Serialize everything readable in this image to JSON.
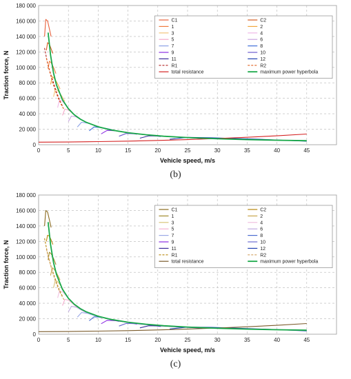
{
  "panel_b_caption": "(b)",
  "panel_c_caption": "(c)",
  "chart_data": [
    {
      "type": "line",
      "caption": "(b)",
      "xlabel": "Vehicle speed, m/s",
      "ylabel": "Traction force, N",
      "xlim": [
        0,
        50
      ],
      "ylim": [
        0,
        180000
      ],
      "xticks": [
        0,
        5,
        10,
        15,
        20,
        25,
        30,
        35,
        40,
        45
      ],
      "yticks": [
        0,
        20000,
        40000,
        60000,
        80000,
        100000,
        120000,
        140000,
        160000,
        180000
      ],
      "ytick_labels": [
        "0",
        "20 000",
        "40 000",
        "60 000",
        "80 000",
        "100 000",
        "120 000",
        "140 000",
        "160 000",
        "180 000"
      ],
      "grid": true,
      "grid_style": "dashed",
      "legend_position": "top-right",
      "legend": [
        "C1",
        "C2",
        "1",
        "2",
        "3",
        "4",
        "5",
        "6",
        "7",
        "8",
        "9",
        "10",
        "11",
        "12",
        "R1",
        "R2",
        "total resistance",
        "maximum power hyperbola"
      ],
      "series": [
        {
          "name": "C1",
          "color": "#e8603a",
          "dash": false,
          "x": [
            1.0,
            1.2,
            1.5,
            1.8,
            2.1
          ],
          "y": [
            140000,
            162000,
            160000,
            150000,
            140000
          ]
        },
        {
          "name": "C2",
          "color": "#d65a1e",
          "dash": false,
          "x": [
            1.3,
            1.5,
            1.8,
            2.1,
            2.4
          ],
          "y": [
            122000,
            132000,
            130000,
            124000,
            118000
          ]
        },
        {
          "name": "1",
          "color": "#f07a3c",
          "dash": false,
          "x": [
            1.6,
            1.8,
            2.1,
            2.5,
            2.9
          ],
          "y": [
            98000,
            108000,
            106000,
            100000,
            92000
          ]
        },
        {
          "name": "2",
          "color": "#f2a63c",
          "dash": false,
          "x": [
            2.0,
            2.3,
            2.6,
            3.1,
            3.6
          ],
          "y": [
            78000,
            88000,
            86000,
            80000,
            72000
          ]
        },
        {
          "name": "3",
          "color": "#f4c47a",
          "dash": false,
          "x": [
            2.5,
            2.8,
            3.2,
            3.8,
            4.4
          ],
          "y": [
            62000,
            72000,
            70000,
            64000,
            56000
          ]
        },
        {
          "name": "4",
          "color": "#f0b8e8",
          "dash": false,
          "x": [
            3.2,
            3.5,
            4.0,
            4.7,
            5.4
          ],
          "y": [
            48000,
            58000,
            56000,
            50000,
            44000
          ]
        },
        {
          "name": "5",
          "color": "#f5a8c8",
          "dash": false,
          "x": [
            4.0,
            4.4,
            5.0,
            5.8,
            6.6
          ],
          "y": [
            38000,
            46000,
            45000,
            40000,
            35000
          ]
        },
        {
          "name": "6",
          "color": "#c9a4e0",
          "dash": false,
          "x": [
            5.0,
            5.5,
            6.3,
            7.2,
            8.2
          ],
          "y": [
            30000,
            37000,
            36000,
            32000,
            28000
          ]
        },
        {
          "name": "7",
          "color": "#8aa0e6",
          "dash": false,
          "x": [
            6.5,
            7.2,
            8.2,
            9.4,
            10.6
          ],
          "y": [
            23000,
            29000,
            28000,
            25000,
            22000
          ]
        },
        {
          "name": "8",
          "color": "#3f6fd8",
          "dash": false,
          "x": [
            8.5,
            9.3,
            10.6,
            12.0,
            13.5
          ],
          "y": [
            18000,
            23000,
            22000,
            20000,
            17000
          ]
        },
        {
          "name": "9",
          "color": "#8a2be2",
          "dash": false,
          "x": [
            10.5,
            11.5,
            13.0,
            14.8,
            16.5
          ],
          "y": [
            14000,
            18500,
            18000,
            16000,
            13500
          ]
        },
        {
          "name": "10",
          "color": "#6a5acd",
          "dash": false,
          "x": [
            13.5,
            14.7,
            16.5,
            18.5,
            20.5
          ],
          "y": [
            11000,
            14500,
            14000,
            12500,
            10500
          ]
        },
        {
          "name": "11",
          "color": "#3a2a9a",
          "dash": false,
          "x": [
            17.0,
            18.5,
            21.0,
            24.0,
            27.5
          ],
          "y": [
            8500,
            11500,
            11000,
            9500,
            8000
          ]
        },
        {
          "name": "12",
          "color": "#1f3fb0",
          "dash": false,
          "x": [
            22.0,
            25.0,
            29.0,
            33.0,
            37.0,
            41.0,
            45.0
          ],
          "y": [
            7000,
            9500,
            9000,
            8000,
            7000,
            5800,
            4500
          ]
        },
        {
          "name": "R1",
          "color": "#b22222",
          "dash": true,
          "x": [
            1.0,
            1.5,
            2.0,
            2.5,
            3.0,
            3.5,
            4.0
          ],
          "y": [
            125000,
            105000,
            92000,
            80000,
            68000,
            58000,
            50000
          ]
        },
        {
          "name": "R2",
          "color": "#e06020",
          "dash": true,
          "x": [
            1.3,
            1.8,
            2.3,
            2.8,
            3.3,
            3.8,
            4.3
          ],
          "y": [
            112000,
            96000,
            82000,
            70000,
            60000,
            52000,
            45000
          ]
        },
        {
          "name": "total resistance",
          "color": "#d42020",
          "dash": false,
          "x": [
            0,
            5,
            10,
            15,
            20,
            25,
            30,
            35,
            40,
            45
          ],
          "y": [
            3300,
            3500,
            4000,
            4600,
            5500,
            6600,
            8000,
            9600,
            11500,
            13800
          ]
        },
        {
          "name": "maximum power hyperbola",
          "color": "#18a848",
          "dash": false,
          "x": [
            1.6,
            2,
            2.5,
            3,
            4,
            5,
            6,
            7,
            8,
            10,
            12,
            15,
            18,
            21,
            25,
            30,
            35,
            40,
            45
          ],
          "y": [
            145000,
            116000,
            92800,
            77300,
            58000,
            46400,
            38700,
            33100,
            29000,
            23200,
            19300,
            15500,
            12900,
            11000,
            9300,
            7700,
            6600,
            5800,
            5200
          ]
        }
      ]
    },
    {
      "type": "line",
      "caption": "(c)",
      "xlabel": "Vehicle speed, m/s",
      "ylabel": "Traction force, N",
      "xlim": [
        0,
        50
      ],
      "ylim": [
        0,
        180000
      ],
      "xticks": [
        0,
        5,
        10,
        15,
        20,
        25,
        30,
        35,
        40,
        45
      ],
      "yticks": [
        0,
        20000,
        40000,
        60000,
        80000,
        100000,
        120000,
        140000,
        160000,
        180000
      ],
      "ytick_labels": [
        "0",
        "20 000",
        "40 000",
        "60 000",
        "80 000",
        "100 000",
        "120 000",
        "140 000",
        "160 000",
        "180 000"
      ],
      "grid": true,
      "grid_style": "dashed",
      "legend_position": "top-right",
      "legend": [
        "C1",
        "C2",
        "1",
        "2",
        "3",
        "4",
        "5",
        "6",
        "7",
        "8",
        "9",
        "10",
        "11",
        "12",
        "R1",
        "R2",
        "total resistance",
        "maximum power hyperbola"
      ],
      "series": [
        {
          "name": "C1",
          "color": "#8a6a1e",
          "dash": false,
          "x": [
            1.0,
            1.2,
            1.5,
            1.8,
            2.1
          ],
          "y": [
            140000,
            160000,
            158000,
            148000,
            138000
          ]
        },
        {
          "name": "C2",
          "color": "#b8860b",
          "dash": false,
          "x": [
            1.3,
            1.5,
            1.8,
            2.1,
            2.4
          ],
          "y": [
            120000,
            128000,
            127000,
            122000,
            116000
          ]
        },
        {
          "name": "1",
          "color": "#a08a2a",
          "dash": false,
          "x": [
            1.6,
            1.8,
            2.1,
            2.5,
            2.9
          ],
          "y": [
            96000,
            106000,
            104000,
            98000,
            90000
          ]
        },
        {
          "name": "2",
          "color": "#c8a44a",
          "dash": false,
          "x": [
            2.0,
            2.3,
            2.6,
            3.1,
            3.6
          ],
          "y": [
            76000,
            86000,
            84000,
            78000,
            70000
          ]
        },
        {
          "name": "3",
          "color": "#d8c47a",
          "dash": false,
          "x": [
            2.5,
            2.8,
            3.2,
            3.8,
            4.4
          ],
          "y": [
            60000,
            70000,
            68000,
            62000,
            54000
          ]
        },
        {
          "name": "4",
          "color": "#f0c0e0",
          "dash": false,
          "x": [
            3.2,
            3.5,
            4.0,
            4.7,
            5.4
          ],
          "y": [
            47000,
            56000,
            55000,
            49000,
            43000
          ]
        },
        {
          "name": "5",
          "color": "#f5b0d0",
          "dash": false,
          "x": [
            4.0,
            4.4,
            5.0,
            5.8,
            6.6
          ],
          "y": [
            37000,
            45000,
            44000,
            39000,
            34000
          ]
        },
        {
          "name": "6",
          "color": "#c0a8e0",
          "dash": false,
          "x": [
            5.0,
            5.5,
            6.3,
            7.2,
            8.2
          ],
          "y": [
            29000,
            36000,
            35000,
            31000,
            27000
          ]
        },
        {
          "name": "7",
          "color": "#9aa8e6",
          "dash": false,
          "x": [
            6.5,
            7.2,
            8.2,
            9.4,
            10.6
          ],
          "y": [
            22000,
            28000,
            27000,
            24000,
            21000
          ]
        },
        {
          "name": "8",
          "color": "#4a6ad0",
          "dash": false,
          "x": [
            8.5,
            9.3,
            10.6,
            12.0,
            13.5
          ],
          "y": [
            17500,
            22500,
            22000,
            19500,
            16500
          ]
        },
        {
          "name": "9",
          "color": "#8a2be2",
          "dash": false,
          "x": [
            10.5,
            11.5,
            13.0,
            14.8,
            16.5
          ],
          "y": [
            13500,
            18000,
            17500,
            15500,
            13000
          ]
        },
        {
          "name": "10",
          "color": "#6a6ad0",
          "dash": false,
          "x": [
            13.5,
            14.7,
            16.5,
            18.5,
            20.5
          ],
          "y": [
            10500,
            14000,
            13500,
            12000,
            10000
          ]
        },
        {
          "name": "11",
          "color": "#3a2a9a",
          "dash": false,
          "x": [
            17.0,
            18.5,
            21.0,
            24.0,
            27.5
          ],
          "y": [
            8200,
            11000,
            10500,
            9200,
            7800
          ]
        },
        {
          "name": "12",
          "color": "#1f3fb0",
          "dash": false,
          "x": [
            22.0,
            25.0,
            29.0,
            33.0,
            37.0,
            41.0,
            45.0
          ],
          "y": [
            6800,
            9200,
            8800,
            7800,
            6800,
            5600,
            4300
          ]
        },
        {
          "name": "R1",
          "color": "#b8860b",
          "dash": true,
          "x": [
            1.0,
            1.5,
            2.0,
            2.5,
            3.0,
            3.5,
            4.0
          ],
          "y": [
            124000,
            104000,
            90000,
            78000,
            67000,
            57000,
            49000
          ]
        },
        {
          "name": "R2",
          "color": "#d4a060",
          "dash": true,
          "x": [
            1.3,
            1.8,
            2.3,
            2.8,
            3.3,
            3.8,
            4.3
          ],
          "y": [
            110000,
            95000,
            81000,
            69000,
            59000,
            51000,
            44000
          ]
        },
        {
          "name": "total resistance",
          "color": "#7a5a2a",
          "dash": false,
          "x": [
            0,
            5,
            10,
            15,
            20,
            25,
            30,
            35,
            40,
            45
          ],
          "y": [
            3300,
            3500,
            4000,
            4600,
            5500,
            6600,
            8000,
            9600,
            11500,
            13800
          ]
        },
        {
          "name": "maximum power hyperbola",
          "color": "#18a848",
          "dash": false,
          "x": [
            1.6,
            2,
            2.5,
            3,
            4,
            5,
            6,
            7,
            8,
            10,
            12,
            15,
            18,
            21,
            25,
            30,
            35,
            40,
            45
          ],
          "y": [
            145000,
            116000,
            92800,
            77300,
            58000,
            46400,
            38700,
            33100,
            29000,
            23200,
            19300,
            15500,
            12900,
            11000,
            9300,
            7700,
            6600,
            5800,
            5200
          ]
        }
      ]
    }
  ]
}
